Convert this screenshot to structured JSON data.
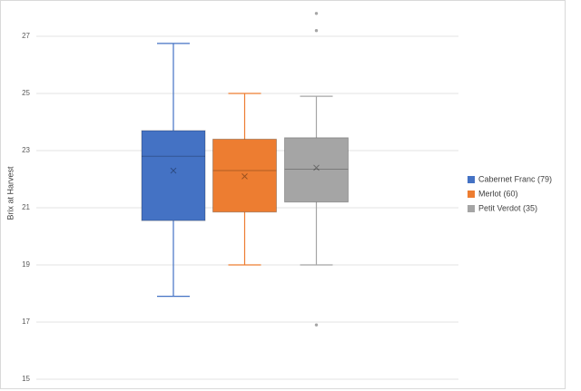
{
  "chart_data": {
    "type": "box",
    "y_label": "Brix at Harvest",
    "ylim": [
      15,
      28
    ],
    "yticks": [
      15,
      17,
      19,
      21,
      23,
      25,
      27
    ],
    "grid": true,
    "series": [
      {
        "name": "Cabernet Franc (79)",
        "color": "#4472c4",
        "whisker_low": 17.9,
        "q1": 20.55,
        "median": 22.8,
        "q3": 23.7,
        "whisker_high": 26.75,
        "mean": 22.3,
        "outliers": []
      },
      {
        "name": "Merlot (60)",
        "color": "#ed7d31",
        "whisker_low": 19.0,
        "q1": 20.85,
        "median": 22.3,
        "q3": 23.4,
        "whisker_high": 25.0,
        "mean": 22.1,
        "outliers": []
      },
      {
        "name": "Petit Verdot (35)",
        "color": "#a5a5a5",
        "whisker_low": 19.0,
        "q1": 21.2,
        "median": 22.35,
        "q3": 23.45,
        "whisker_high": 24.9,
        "mean": 22.4,
        "outliers": [
          27.8,
          27.2,
          16.9
        ]
      }
    ]
  }
}
